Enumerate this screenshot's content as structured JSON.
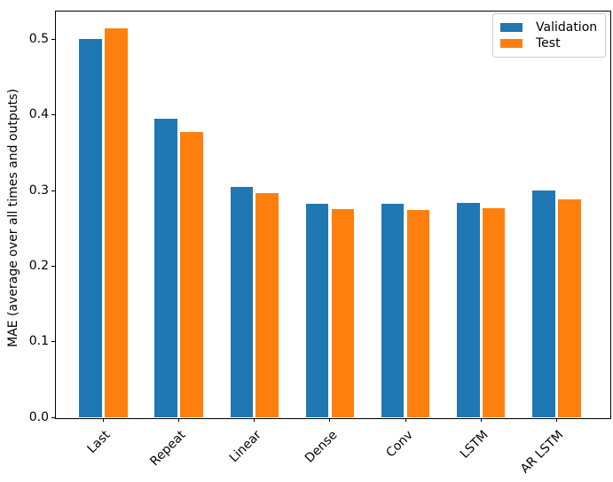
{
  "chart_data": {
    "type": "bar",
    "title": "",
    "xlabel": "",
    "ylabel": "MAE (average over all times and outputs)",
    "categories": [
      "Last",
      "Repeat",
      "Linear",
      "Dense",
      "Conv",
      "LSTM",
      "AR LSTM"
    ],
    "series": [
      {
        "name": "Validation",
        "color": "#1f77b4",
        "offset": -0.17,
        "values": [
          0.501,
          0.395,
          0.305,
          0.282,
          0.282,
          0.284,
          0.3
        ]
      },
      {
        "name": "Test",
        "color": "#ff7f0e",
        "offset": 0.17,
        "values": [
          0.515,
          0.377,
          0.297,
          0.276,
          0.274,
          0.277,
          0.288
        ]
      }
    ],
    "bar_width": 0.3,
    "xlim": [
      -0.64,
      6.7
    ],
    "ylim": [
      0,
      0.538
    ],
    "yticks": [
      0.0,
      0.1,
      0.2,
      0.3,
      0.4,
      0.5
    ],
    "ytick_labels": [
      "0.0",
      "0.1",
      "0.2",
      "0.3",
      "0.4",
      "0.5"
    ],
    "xtick_rotation": 45,
    "grid": false,
    "legend_position": "upper right"
  }
}
